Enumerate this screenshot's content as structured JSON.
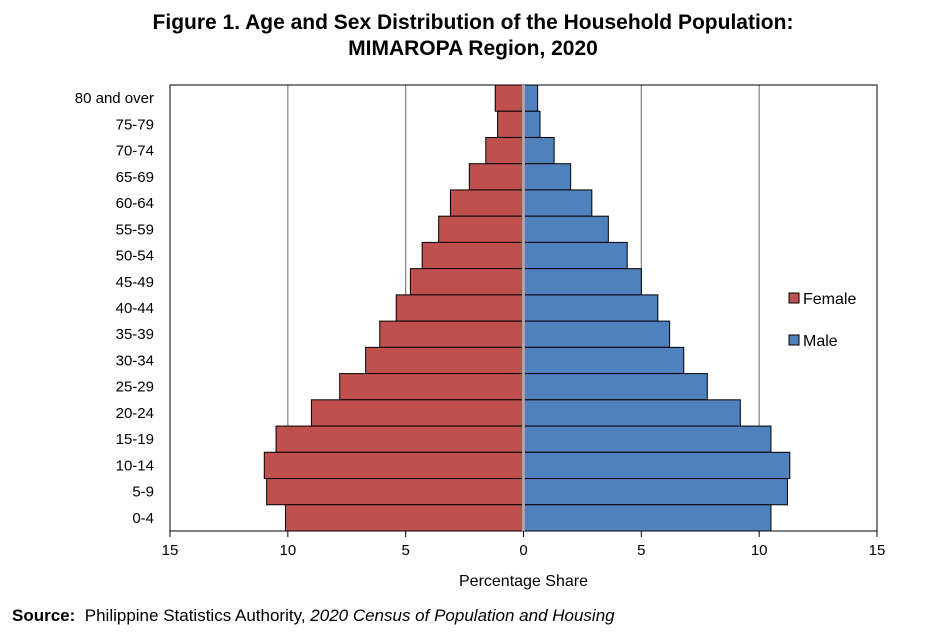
{
  "title_line1": "Figure 1. Age and Sex Distribution of the Household Population:",
  "title_line2": "MIMAROPA Region, 2020",
  "source": {
    "label": "Source:",
    "agency": "Philippine Statistics Authority,",
    "publication": "2020 Census of Population and Housing"
  },
  "colors": {
    "female": "#C0504D",
    "male": "#4F81BD",
    "grid": "#808080",
    "axis_center": "#A6A6A6"
  },
  "chart_data": {
    "type": "bar",
    "orientation": "horizontal",
    "categories": [
      "80 and over",
      "75-79",
      "70-74",
      "65-69",
      "60-64",
      "55-59",
      "50-54",
      "45-49",
      "40-44",
      "35-39",
      "30-34",
      "25-29",
      "20-24",
      "15-19",
      "10-14",
      "5-9",
      "0-4"
    ],
    "series": [
      {
        "name": "Female",
        "values": [
          1.2,
          1.1,
          1.6,
          2.3,
          3.1,
          3.6,
          4.3,
          4.8,
          5.4,
          6.1,
          6.7,
          7.8,
          9.0,
          10.5,
          11.0,
          10.9,
          10.1
        ]
      },
      {
        "name": "Male",
        "values": [
          0.6,
          0.7,
          1.3,
          2.0,
          2.9,
          3.6,
          4.4,
          5.0,
          5.7,
          6.2,
          6.8,
          7.8,
          9.2,
          10.5,
          11.3,
          11.2,
          10.5
        ]
      }
    ],
    "xlabel": "Percentage Share",
    "xlim": [
      -15,
      15
    ],
    "xticks": [
      -15,
      -10,
      -5,
      0,
      5,
      10,
      15
    ],
    "xtick_labels": [
      "15",
      "10",
      "5",
      "0",
      "5",
      "10",
      "15"
    ],
    "grid": true,
    "legend_position": "right"
  }
}
